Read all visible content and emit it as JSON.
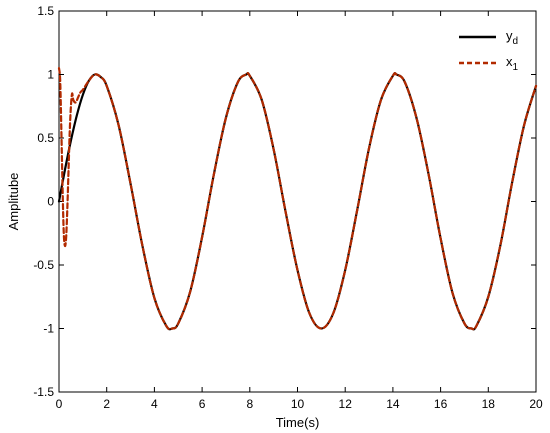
{
  "chart_data": {
    "type": "line",
    "title": "",
    "xlabel": "Time(s)",
    "ylabel": "Amplitube",
    "xlim": [
      0,
      20
    ],
    "ylim": [
      -1.5,
      1.5
    ],
    "x_ticks": [
      0,
      2,
      4,
      6,
      8,
      10,
      12,
      14,
      16,
      18,
      20
    ],
    "y_ticks": [
      -1.5,
      -1,
      -0.5,
      0,
      0.5,
      1,
      1.5
    ],
    "x_tick_labels": [
      "0",
      "2",
      "4",
      "6",
      "8",
      "10",
      "12",
      "14",
      "16",
      "18",
      "20"
    ],
    "y_tick_labels": [
      "-1.5",
      "-1",
      "-0.5",
      "0",
      "0.5",
      "1",
      "1.5"
    ],
    "grid": false,
    "legend_position": "top-right",
    "series": [
      {
        "name": "y",
        "subscript": "d",
        "color": "#000000",
        "style": "solid",
        "x": [
          0,
          0.25,
          0.5,
          0.75,
          1,
          1.25,
          1.5,
          1.75,
          2,
          2.5,
          3,
          3.5,
          4,
          4.5,
          4.75,
          5,
          5.5,
          6,
          6.5,
          7,
          7.5,
          7.85,
          8,
          8.5,
          9,
          9.5,
          10,
          10.5,
          11,
          11.5,
          12,
          12.5,
          13,
          13.5,
          14,
          14.15,
          14.5,
          15,
          15.5,
          16,
          16.5,
          17,
          17.3,
          17.5,
          18,
          18.5,
          19,
          19.5,
          20
        ],
        "values": [
          0,
          0.25,
          0.48,
          0.68,
          0.84,
          0.95,
          1,
          0.98,
          0.91,
          0.6,
          0.14,
          -0.35,
          -0.76,
          -0.98,
          -1,
          -0.96,
          -0.71,
          -0.28,
          0.22,
          0.66,
          0.94,
          1,
          0.99,
          0.8,
          0.41,
          -0.08,
          -0.54,
          -0.88,
          -1,
          -0.88,
          -0.54,
          -0.07,
          0.42,
          0.8,
          0.99,
          1,
          0.94,
          0.65,
          0.21,
          -0.29,
          -0.72,
          -0.96,
          -1,
          -0.98,
          -0.75,
          -0.35,
          0.15,
          0.6,
          0.91
        ]
      },
      {
        "name": "x",
        "subscript": "1",
        "color": "#b22a00",
        "style": "dashed",
        "x": [
          0,
          0.05,
          0.1,
          0.15,
          0.2,
          0.25,
          0.3,
          0.35,
          0.4,
          0.45,
          0.5,
          0.55,
          0.6,
          0.7,
          0.8,
          0.9,
          1,
          1.25,
          1.5,
          1.75,
          2,
          2.5,
          3,
          3.5,
          4,
          4.5,
          4.75,
          5,
          5.5,
          6,
          6.5,
          7,
          7.5,
          7.85,
          8,
          8.5,
          9,
          9.5,
          10,
          10.5,
          11,
          11.5,
          12,
          12.5,
          13,
          13.5,
          14,
          14.15,
          14.5,
          15,
          15.5,
          16,
          16.5,
          17,
          17.3,
          17.5,
          18,
          18.5,
          19,
          19.5,
          20
        ],
        "values": [
          1.05,
          0.95,
          0.55,
          0.1,
          -0.25,
          -0.35,
          -0.28,
          -0.05,
          0.25,
          0.55,
          0.75,
          0.85,
          0.8,
          0.78,
          0.82,
          0.86,
          0.88,
          0.95,
          1,
          0.98,
          0.91,
          0.6,
          0.14,
          -0.35,
          -0.76,
          -0.98,
          -1,
          -0.96,
          -0.71,
          -0.28,
          0.22,
          0.66,
          0.94,
          1,
          0.99,
          0.8,
          0.41,
          -0.08,
          -0.54,
          -0.88,
          -1,
          -0.88,
          -0.54,
          -0.07,
          0.42,
          0.8,
          0.99,
          1,
          0.94,
          0.65,
          0.21,
          -0.29,
          -0.72,
          -0.96,
          -1,
          -0.98,
          -0.75,
          -0.35,
          0.15,
          0.6,
          0.91
        ]
      }
    ]
  }
}
